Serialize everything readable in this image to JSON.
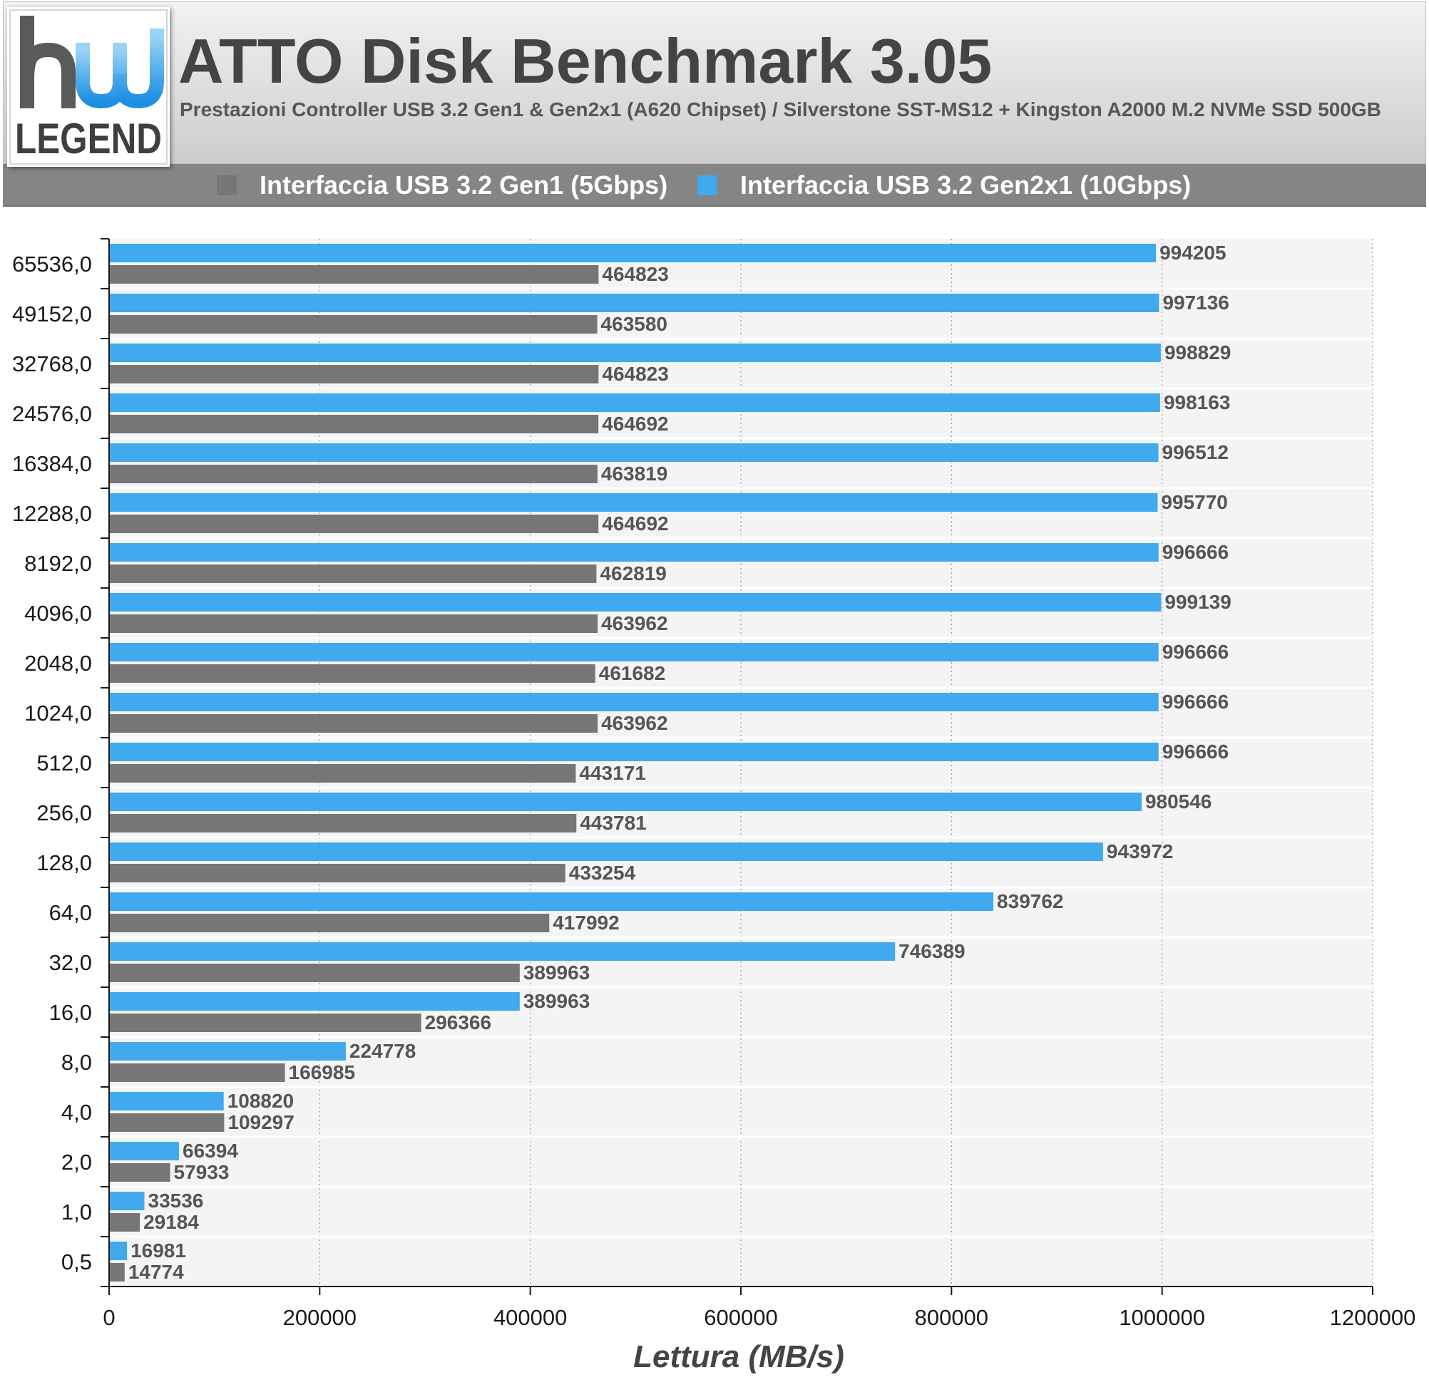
{
  "header": {
    "title": "ATTO Disk Benchmark 3.05",
    "subtitle": "Prestazioni Controller USB 3.2 Gen1 & Gen2x1 (A620 Chipset) / Silverstone SST-MS12 + Kingston A2000 M.2 NVMe SSD 500GB",
    "logo_top": "hw",
    "logo_bottom": "LEGEND"
  },
  "legend": [
    {
      "label": "Interfaccia USB 3.2 Gen1 (5Gbps)",
      "color": "#767676"
    },
    {
      "label": "Interfaccia USB 3.2 Gen2x1 (10Gbps)",
      "color": "#41a9ed"
    }
  ],
  "chart_data": {
    "type": "bar",
    "orientation": "horizontal",
    "title": "ATTO Disk Benchmark 3.05",
    "subtitle": "Prestazioni Controller USB 3.2 Gen1 & Gen2x1 (A620 Chipset) / Silverstone SST-MS12 + Kingston A2000 M.2 NVMe SSD 500GB",
    "xlabel": "Lettura (MB/s)",
    "ylabel": "",
    "xlim": [
      0,
      1200000
    ],
    "xticks": [
      "0",
      "200000",
      "400000",
      "600000",
      "800000",
      "1000000",
      "1200000"
    ],
    "grid": true,
    "legend_position": "top",
    "categories": [
      "65536,0",
      "49152,0",
      "32768,0",
      "24576,0",
      "16384,0",
      "12288,0",
      "8192,0",
      "4096,0",
      "2048,0",
      "1024,0",
      "512,0",
      "256,0",
      "128,0",
      "64,0",
      "32,0",
      "16,0",
      "8,0",
      "4,0",
      "2,0",
      "1,0",
      "0,5"
    ],
    "series": [
      {
        "name": "Interfaccia USB 3.2 Gen2x1 (10Gbps)",
        "color": "#41a9ed",
        "values": [
          994205,
          997136,
          998829,
          998163,
          996512,
          995770,
          996666,
          999139,
          996666,
          996666,
          996666,
          980546,
          943972,
          839762,
          746389,
          389963,
          224778,
          108820,
          66394,
          33536,
          16981
        ]
      },
      {
        "name": "Interfaccia USB 3.2 Gen1 (5Gbps)",
        "color": "#767676",
        "values": [
          464823,
          463580,
          464823,
          464692,
          463819,
          464692,
          462819,
          463962,
          461682,
          463962,
          443171,
          443781,
          433254,
          417992,
          389963,
          296366,
          166985,
          109297,
          57933,
          29184,
          14774
        ]
      }
    ]
  }
}
